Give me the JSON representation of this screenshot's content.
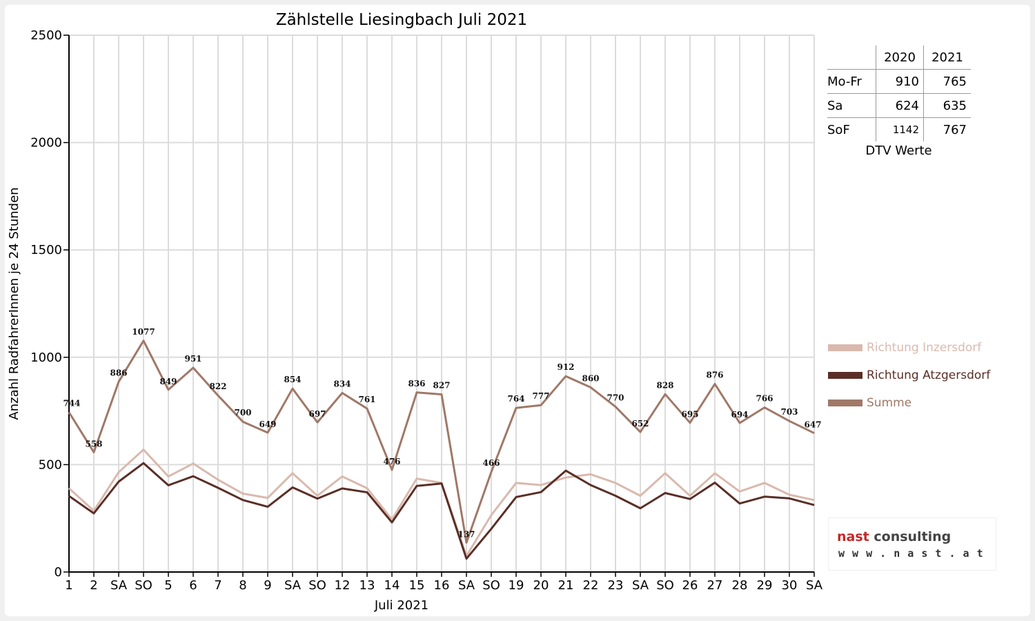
{
  "chart_data": {
    "type": "line",
    "title": "Zählstelle Liesingbach Juli 2021",
    "xlabel": "Juli 2021",
    "ylabel": "Anzahl RadfahrerInnen je 24 Stunden",
    "ylim": [
      0,
      2500
    ],
    "yticks": [
      0,
      500,
      1000,
      1500,
      2000,
      2500
    ],
    "grid": true,
    "legend_position": "right",
    "categories": [
      "1",
      "2",
      "SA",
      "SO",
      "5",
      "6",
      "7",
      "8",
      "9",
      "SA",
      "SO",
      "12",
      "13",
      "14",
      "15",
      "16",
      "SA",
      "SO",
      "19",
      "20",
      "21",
      "22",
      "23",
      "SA",
      "SO",
      "26",
      "27",
      "28",
      "29",
      "30",
      "SA"
    ],
    "highlight_categories": [
      "SO"
    ],
    "highlight_color": "#e00000",
    "series": [
      {
        "name": "Richtung Inzersdorf",
        "color": "#d9b9ad",
        "width": 3,
        "values": [
          390,
          285,
          465,
          570,
          445,
          505,
          430,
          365,
          345,
          460,
          355,
          445,
          390,
          245,
          435,
          415,
          75,
          265,
          415,
          405,
          440,
          455,
          415,
          355,
          460,
          355,
          460,
          375,
          415,
          360,
          335
        ]
      },
      {
        "name": "Richtung Atzgersdorf",
        "color": "#5a2e26",
        "width": 3,
        "values": [
          354,
          273,
          421,
          507,
          404,
          446,
          392,
          335,
          304,
          394,
          342,
          389,
          371,
          231,
          401,
          412,
          62,
          201,
          349,
          372,
          472,
          405,
          355,
          297,
          368,
          340,
          416,
          319,
          351,
          343,
          312
        ]
      },
      {
        "name": "Summe",
        "color": "#a07868",
        "width": 3,
        "labels": true,
        "values": [
          744,
          558,
          886,
          1077,
          849,
          951,
          822,
          700,
          649,
          854,
          697,
          834,
          761,
          476,
          836,
          827,
          137,
          466,
          764,
          777,
          912,
          860,
          770,
          652,
          828,
          695,
          876,
          694,
          766,
          703,
          647
        ]
      }
    ]
  },
  "dtv_table": {
    "columns": [
      "2020",
      "2021"
    ],
    "rows": [
      {
        "label": "Mo-Fr",
        "v2020": "910",
        "v2021": "765"
      },
      {
        "label": "Sa",
        "v2020": "624",
        "v2021": "635"
      },
      {
        "label": "SoF",
        "v2020": "1142",
        "v2021": "767"
      }
    ],
    "caption": "DTV Werte"
  },
  "logo": {
    "name_part1": "nast",
    "name_part2": "consulting",
    "url": "w w w . n a s t . a t"
  }
}
